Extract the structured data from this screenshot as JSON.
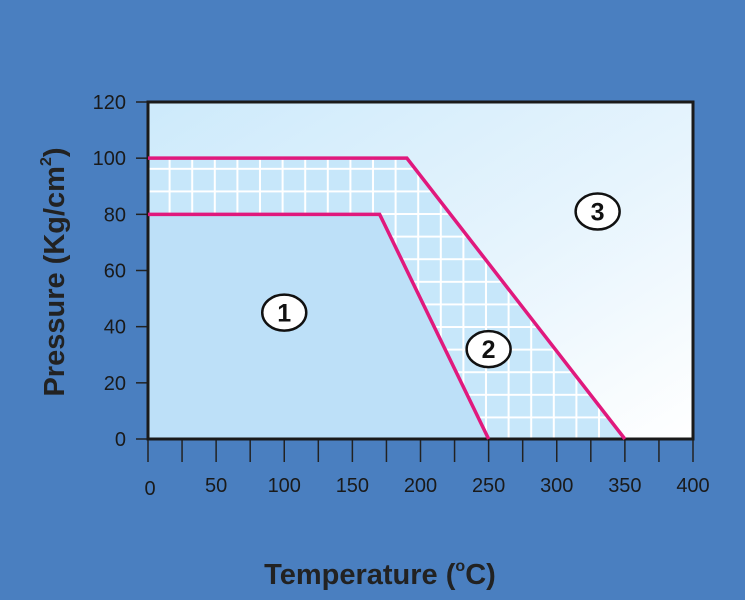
{
  "chart_data": {
    "type": "area",
    "xlabel": "Temperature",
    "xlabel_unit_pre": " (",
    "xlabel_unit_sup": "o",
    "xlabel_unit_post": "C)",
    "ylabel": "Pressure (Kg/cm",
    "ylabel_sup": "2",
    "ylabel_post": ")",
    "xlim": [
      0,
      400
    ],
    "ylim": [
      0,
      120
    ],
    "x_ticks": [
      0,
      50,
      100,
      150,
      200,
      250,
      300,
      350,
      400
    ],
    "y_ticks": [
      0,
      20,
      40,
      60,
      80,
      100,
      120
    ],
    "x_tick_labels": [
      "0",
      "50",
      "100",
      "150",
      "200",
      "250",
      "300",
      "350",
      "400"
    ],
    "y_tick_labels": [
      "0",
      "20",
      "40",
      "60",
      "80",
      "100",
      "120"
    ],
    "series": [
      {
        "x": [
          0,
          170,
          250
        ],
        "y": [
          80,
          80,
          0
        ]
      },
      {
        "x": [
          0,
          190,
          350
        ],
        "y": [
          100,
          100,
          0
        ]
      }
    ],
    "regions": [
      {
        "label": "1",
        "x": 100,
        "y": 45
      },
      {
        "label": "2",
        "x": 250,
        "y": 32
      },
      {
        "label": "3",
        "x": 330,
        "y": 81
      }
    ],
    "colors": {
      "background": "#4a7fc0",
      "region1": "#bde0f8",
      "grid_fill": "#c7e7fa",
      "line": "#e0197d"
    }
  }
}
